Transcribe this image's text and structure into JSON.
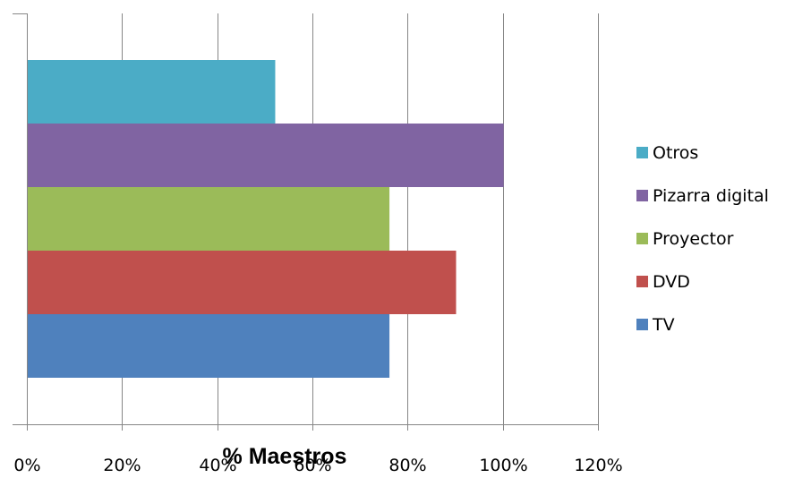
{
  "chart_data": {
    "type": "bar",
    "orientation": "horizontal",
    "xlabel": "% Maestros",
    "ylabel": "",
    "xlim": [
      0,
      120
    ],
    "x_tick_labels": [
      "0%",
      "20%",
      "40%",
      "60%",
      "80%",
      "100%",
      "120%"
    ],
    "grid": "vertical-lines",
    "legend_position": "right",
    "series": [
      {
        "name": "TV",
        "value": 76,
        "color": "#4F81BD"
      },
      {
        "name": "DVD",
        "value": 90,
        "color": "#C0504D"
      },
      {
        "name": "Proyector",
        "value": 76,
        "color": "#9BBB59"
      },
      {
        "name": "Pizarra digital",
        "value": 100,
        "color": "#8064A2"
      },
      {
        "name": "Otros",
        "value": 52,
        "color": "#4BACC6"
      }
    ],
    "axis_color": "#868686",
    "grid_color": "#868686"
  }
}
